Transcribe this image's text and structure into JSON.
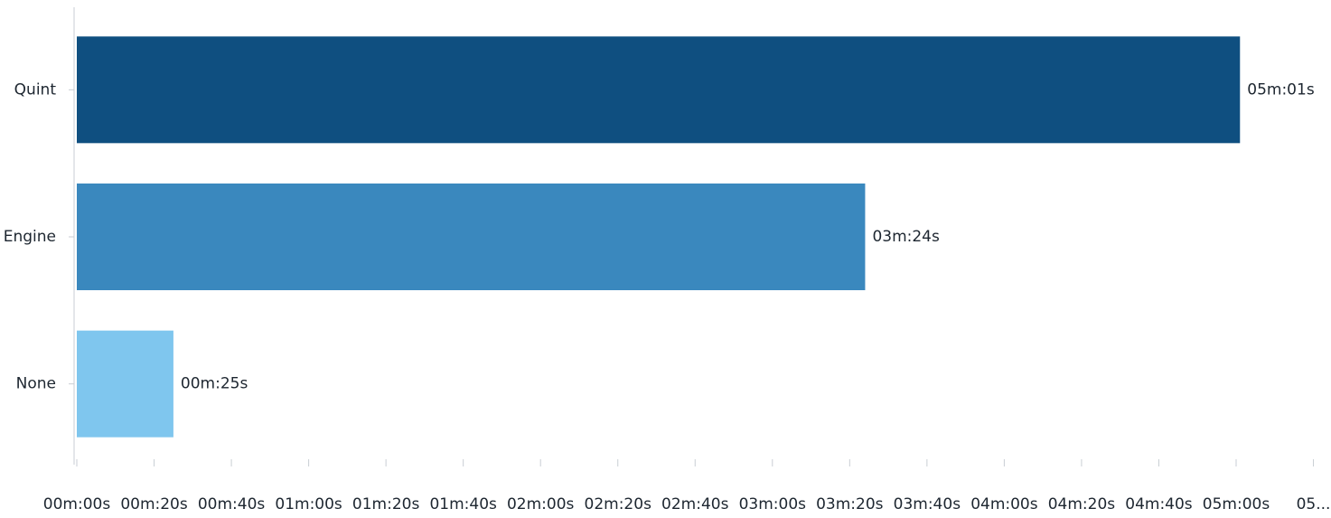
{
  "chart_data": {
    "type": "bar",
    "orientation": "horizontal",
    "categories": [
      "Quint",
      "Engine",
      "None"
    ],
    "values": [
      301,
      204,
      25
    ],
    "value_labels": [
      "05m:01s",
      "03m:24s",
      "00m:25s"
    ],
    "colors": [
      "#0f4f80",
      "#3a88be",
      "#7fc6ee"
    ],
    "x_ticks": [
      {
        "value": 0,
        "label": "00m:00s"
      },
      {
        "value": 20,
        "label": "00m:20s"
      },
      {
        "value": 40,
        "label": "00m:40s"
      },
      {
        "value": 60,
        "label": "01m:00s"
      },
      {
        "value": 80,
        "label": "01m:20s"
      },
      {
        "value": 100,
        "label": "01m:40s"
      },
      {
        "value": 120,
        "label": "02m:00s"
      },
      {
        "value": 140,
        "label": "02m:20s"
      },
      {
        "value": 160,
        "label": "02m:40s"
      },
      {
        "value": 180,
        "label": "03m:00s"
      },
      {
        "value": 200,
        "label": "03m:20s"
      },
      {
        "value": 220,
        "label": "03m:40s"
      },
      {
        "value": 240,
        "label": "04m:00s"
      },
      {
        "value": 260,
        "label": "04m:20s"
      },
      {
        "value": 280,
        "label": "04m:40s"
      },
      {
        "value": 300,
        "label": "05m:00s"
      },
      {
        "value": 320,
        "label": "05..."
      }
    ],
    "xlim": [
      0,
      320
    ],
    "xlabel": "",
    "ylabel": "",
    "title": "",
    "grid": false,
    "legend": "none"
  }
}
